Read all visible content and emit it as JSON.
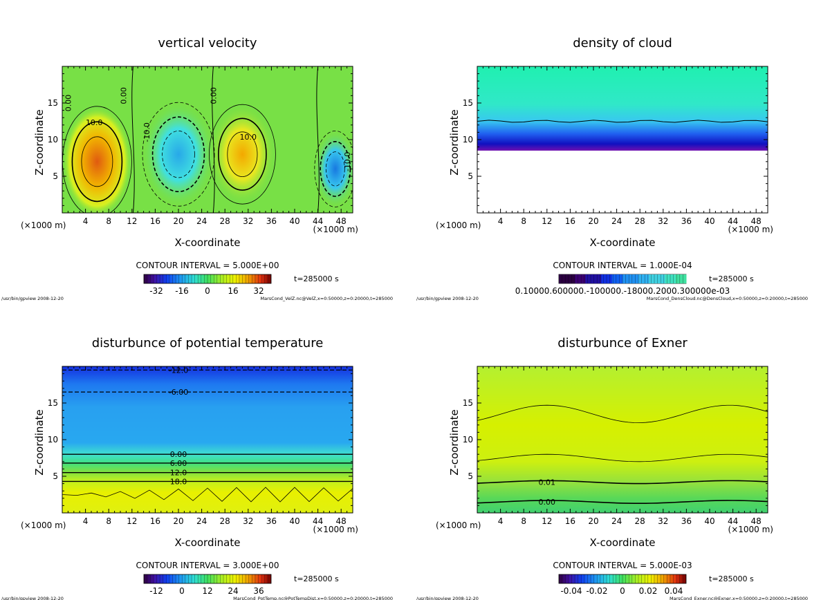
{
  "panels": [
    {
      "id": "velz",
      "title": "vertical velocity",
      "xlabel": "X-coordinate",
      "ylabel": "Z-coordinate",
      "unit_left": "(×1000 m)",
      "unit_right": "(×1000 m)",
      "contour_interval": "CONTOUR INTERVAL = 5.000E+00",
      "time": "t=285000 s",
      "footer_left": "/usr/bin/gpview  2008-12-20",
      "footer_right": "MarsCond_VelZ.nc@VelZ,x=0:50000,z=0:20000,t=285000",
      "colorbar_ticks": [
        "-32",
        "-16",
        "0",
        "16",
        "32"
      ],
      "contour_labels": [
        "10.0",
        "0.00",
        "0.00",
        "-10.0",
        "10.0",
        "0.00",
        "-10.0"
      ]
    },
    {
      "id": "denscloud",
      "title": "density of cloud",
      "xlabel": "X-coordinate",
      "ylabel": "Z-coordinate",
      "unit_left": "(×1000 m)",
      "unit_right": "(×1000 m)",
      "contour_interval": "CONTOUR INTERVAL = 1.000E-04",
      "time": "t=285000 s",
      "footer_left": "/usr/bin/gpview  2008-12-20",
      "footer_right": "MarsCond_DensCloud.nc@DensCloud,x=0:50000,z=0:20000,t=285000",
      "colorbar_ticks": [
        "0.10000.600000.-100000.-18000.2000.300000e-03"
      ],
      "contour_labels": []
    },
    {
      "id": "pottemp",
      "title": "disturbunce of potential temperature",
      "xlabel": "X-coordinate",
      "ylabel": "Z-coordinate",
      "unit_left": "(×1000 m)",
      "unit_right": "(×1000 m)",
      "contour_interval": "CONTOUR INTERVAL = 3.000E+00",
      "time": "t=285000 s",
      "footer_left": "/usr/bin/gpview  2008-12-20",
      "footer_right": "MarsCond_PotTemp.nc@PotTempDist,x=0:50000,z=0:20000,t=285000",
      "colorbar_ticks": [
        "-12",
        "0",
        "12",
        "24",
        "36"
      ],
      "contour_labels": [
        "-12.0",
        "-6.00",
        "0.00",
        "6.00",
        "12.0",
        "18.0"
      ]
    },
    {
      "id": "exner",
      "title": "disturbunce of Exner",
      "xlabel": "X-coordinate",
      "ylabel": "Z-coordinate",
      "unit_left": "(×1000 m)",
      "unit_right": "(×1000 m)",
      "contour_interval": "CONTOUR INTERVAL = 5.000E-03",
      "time": "t=285000 s",
      "footer_left": "/usr/bin/gpview  2008-12-20",
      "footer_right": "MarsCond_Exner.nc@Exner,x=0:50000,z=0:20000,t=285000",
      "colorbar_ticks": [
        "-0.04",
        "-0.02",
        "0",
        "0.02",
        "0.04"
      ],
      "contour_labels": [
        "0.01",
        "0.00"
      ]
    }
  ],
  "chart_data": [
    {
      "type": "heatmap",
      "title": "vertical velocity",
      "xlabel": "X-coordinate",
      "ylabel": "Z-coordinate",
      "x_ticks": [
        4,
        8,
        12,
        16,
        20,
        24,
        28,
        32,
        36,
        40,
        44,
        48
      ],
      "y_ticks": [
        5,
        10,
        15
      ],
      "xlim": [
        0,
        50
      ],
      "ylim": [
        0,
        20
      ],
      "colorbar_range": [
        -40,
        40
      ],
      "features": [
        {
          "x": 6,
          "z": 7,
          "value": 25
        },
        {
          "x": 20,
          "z": 8,
          "value": -15
        },
        {
          "x": 31,
          "z": 8,
          "value": 20
        },
        {
          "x": 47,
          "z": 6,
          "value": -25
        }
      ]
    },
    {
      "type": "heatmap",
      "title": "density of cloud",
      "xlabel": "X-coordinate",
      "ylabel": "Z-coordinate",
      "x_ticks": [
        4,
        8,
        12,
        16,
        20,
        24,
        28,
        32,
        36,
        40,
        44,
        48
      ],
      "y_ticks": [
        5,
        10,
        15
      ],
      "xlim": [
        0,
        50
      ],
      "ylim": [
        0,
        20
      ],
      "cloud_base_z": 8.5,
      "contour_z": 12.5
    },
    {
      "type": "heatmap",
      "title": "disturbunce of potential temperature",
      "xlabel": "X-coordinate",
      "ylabel": "Z-coordinate",
      "x_ticks": [
        4,
        8,
        12,
        16,
        20,
        24,
        28,
        32,
        36,
        40,
        44,
        48
      ],
      "y_ticks": [
        5,
        10,
        15
      ],
      "xlim": [
        0,
        50
      ],
      "ylim": [
        0,
        20
      ],
      "colorbar_range": [
        -18,
        42
      ],
      "contours": [
        {
          "z": 19.5,
          "value": -12
        },
        {
          "z": 16.5,
          "value": -6
        },
        {
          "z": 8.0,
          "value": 0
        },
        {
          "z": 6.8,
          "value": 6
        },
        {
          "z": 5.5,
          "value": 12
        },
        {
          "z": 4.3,
          "value": 18
        }
      ]
    },
    {
      "type": "heatmap",
      "title": "disturbunce of Exner",
      "xlabel": "X-coordinate",
      "ylabel": "Z-coordinate",
      "x_ticks": [
        4,
        8,
        12,
        16,
        20,
        24,
        28,
        32,
        36,
        40,
        44,
        48
      ],
      "y_ticks": [
        5,
        10,
        15
      ],
      "xlim": [
        0,
        50
      ],
      "ylim": [
        0,
        20
      ],
      "colorbar_range": [
        -0.05,
        0.05
      ],
      "contours": [
        {
          "z": 4.2,
          "value": 0.01
        },
        {
          "z": 1.5,
          "value": 0.0
        }
      ]
    }
  ]
}
